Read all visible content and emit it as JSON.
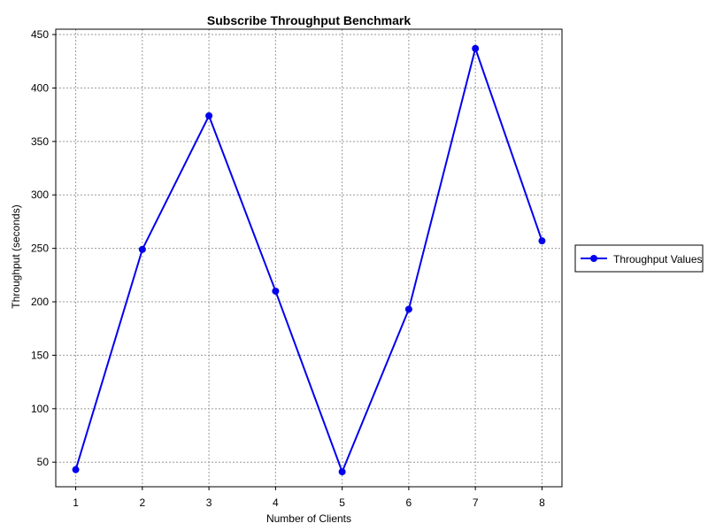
{
  "chart_data": {
    "type": "line",
    "title": "Subscribe Throughput Benchmark",
    "xlabel": "Number of Clients",
    "ylabel": "Throughput (seconds)",
    "x": [
      1,
      2,
      3,
      4,
      5,
      6,
      7,
      8
    ],
    "xticks": [
      "1",
      "2",
      "3",
      "4",
      "5",
      "6",
      "7",
      "8"
    ],
    "xlim": [
      0.7,
      8.3
    ],
    "yticks": [
      50,
      100,
      150,
      200,
      250,
      300,
      350,
      400,
      450
    ],
    "ylim": [
      27,
      455
    ],
    "grid": true,
    "legend_position": "right",
    "series": [
      {
        "name": "Throughput Values",
        "color": "#0000ee",
        "marker": "circle",
        "values": [
          43,
          249,
          374,
          210,
          41,
          193,
          437,
          257
        ]
      }
    ]
  }
}
